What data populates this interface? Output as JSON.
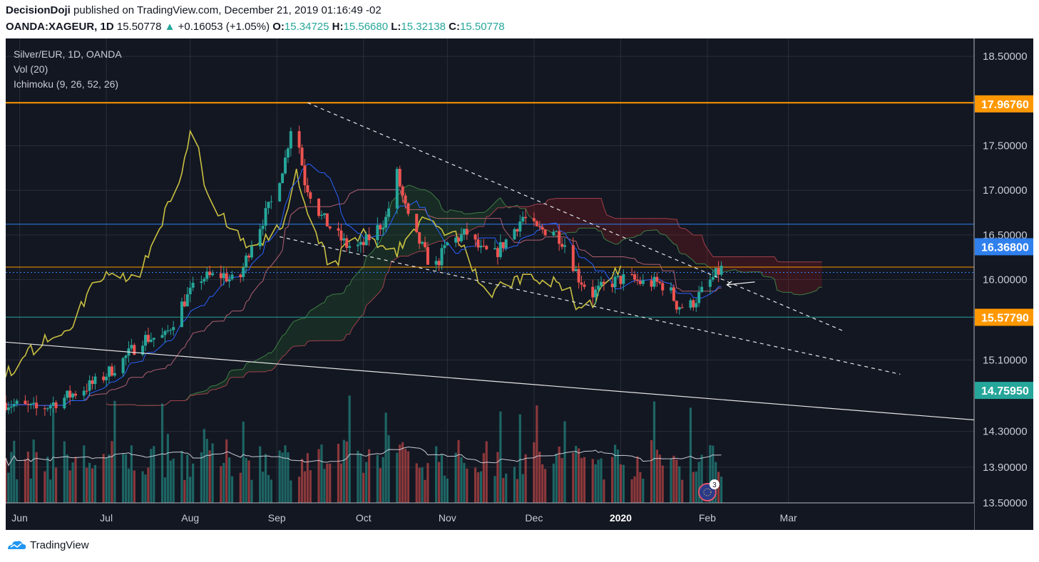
{
  "header": {
    "author": "DecisionDoji",
    "published": " published on TradingView.com, December 21, 2019 01:16:49 -02",
    "symbol": "OANDA:XAGEUR, 1D",
    "last": "15.50778",
    "change": "+0.16053 (+1.05%)",
    "o_label": "O:",
    "o": "15.34725",
    "h_label": "H:",
    "h": "15.56680",
    "l_label": "L:",
    "l": "15.32138",
    "c_label": "C:",
    "c": "15.50778"
  },
  "legend": {
    "title": "Silver/EUR, 1D, OANDA",
    "vol": "Vol (20)",
    "ichimoku": "Ichimoku (9, 26, 52, 26)"
  },
  "footer": {
    "brand": "TradingView"
  },
  "event_badge": "3",
  "colors": {
    "background": "#131722",
    "up": "#26a69a",
    "down": "#ef5350",
    "tenkan": "#2962ff",
    "kijun": "#b06070",
    "chikou": "#c9c041",
    "resistance": "#ff9800",
    "support_blue": "#2f80ed",
    "support_teal": "#26a69a"
  },
  "chart_data": {
    "type": "candlestick",
    "symbol": "Silver/EUR",
    "interval": "1D",
    "ylim": [
      13.5,
      18.7
    ],
    "y_ticks": [
      "18.50000",
      "17.50000",
      "17.00000",
      "16.50000",
      "16.00000",
      "15.10000",
      "14.30000",
      "13.90000",
      "13.50000"
    ],
    "price_labels": [
      {
        "value": "17.96760",
        "color": "#ff9800"
      },
      {
        "value": "16.36800",
        "color": "#2f80ed"
      },
      {
        "value": "15.57790",
        "color": "#ff9800"
      },
      {
        "value": "14.75950",
        "color": "#26a69a"
      }
    ],
    "x_ticks": [
      "Jun",
      "Jul",
      "Aug",
      "Sep",
      "Oct",
      "Nov",
      "Dec",
      "2020",
      "Feb",
      "Mar"
    ],
    "horizontal_levels": [
      {
        "name": "resistance",
        "value": 17.98,
        "color": "#ff9800"
      },
      {
        "name": "blue-level",
        "value": 16.62,
        "color": "#2f80ed"
      },
      {
        "name": "orange-level",
        "value": 16.14,
        "color": "#ff9800"
      },
      {
        "name": "teal-level",
        "value": 15.58,
        "color": "#26a69a"
      }
    ],
    "price_path": [
      [
        0,
        14.62
      ],
      [
        12,
        14.54
      ],
      [
        24,
        14.72
      ],
      [
        33,
        14.86
      ],
      [
        42,
        15.1
      ],
      [
        49,
        15.34
      ],
      [
        57,
        15.36
      ],
      [
        63,
        15.72
      ],
      [
        70,
        16.02
      ],
      [
        78,
        16.05
      ],
      [
        83,
        15.94
      ],
      [
        88,
        16.42
      ],
      [
        95,
        16.86
      ],
      [
        100,
        17.35
      ],
      [
        103,
        17.88
      ],
      [
        107,
        17.1
      ],
      [
        113,
        16.7
      ],
      [
        117,
        16.55
      ],
      [
        122,
        16.38
      ],
      [
        127,
        16.36
      ],
      [
        136,
        16.68
      ],
      [
        140,
        17.18
      ],
      [
        145,
        16.55
      ],
      [
        148,
        16.42
      ],
      [
        153,
        16.1
      ],
      [
        158,
        16.4
      ],
      [
        165,
        16.52
      ],
      [
        170,
        16.32
      ],
      [
        175,
        16.28
      ],
      [
        180,
        16.48
      ],
      [
        185,
        16.7
      ],
      [
        190,
        16.55
      ],
      [
        196,
        16.56
      ],
      [
        200,
        16.4
      ],
      [
        205,
        16.02
      ],
      [
        210,
        15.84
      ],
      [
        216,
        15.96
      ],
      [
        222,
        16.02
      ],
      [
        228,
        15.96
      ],
      [
        233,
        15.96
      ],
      [
        237,
        15.92
      ],
      [
        240,
        15.72
      ],
      [
        244,
        15.68
      ],
      [
        248,
        15.82
      ],
      [
        252,
        15.98
      ],
      [
        256,
        16.12
      ]
    ],
    "trendlines": [
      {
        "name": "descending-upper",
        "from": [
          108,
          17.98
        ],
        "to": [
          300,
          15.42
        ],
        "dashed": true
      },
      {
        "name": "descending-lower",
        "from": [
          98,
          16.48
        ],
        "to": [
          320,
          14.94
        ],
        "dashed": true
      },
      {
        "name": "long-term",
        "from": [
          0,
          15.3
        ],
        "to": [
          350,
          14.42
        ],
        "dashed": false
      }
    ],
    "volume_ma": 20,
    "ichimoku": [
      9,
      26,
      52,
      26
    ]
  }
}
